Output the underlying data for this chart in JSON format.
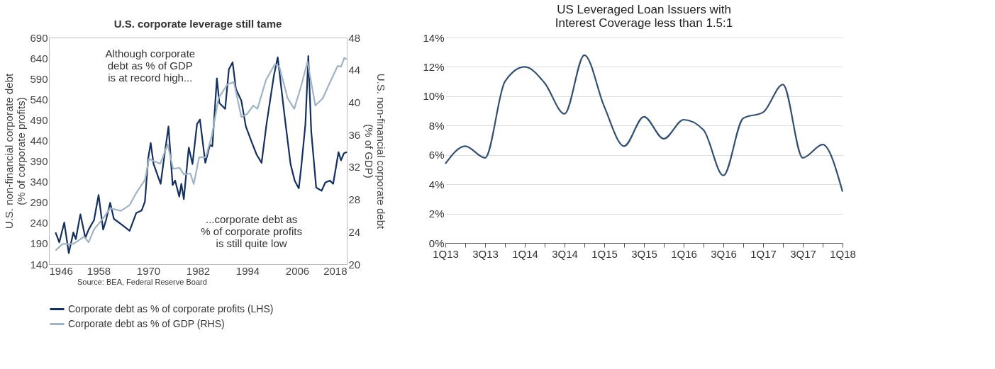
{
  "chart_data": [
    {
      "type": "line",
      "title": "U.S. corporate leverage still tame",
      "ylabel": "U.S. non-financial corporate debt\n(% of corporate profits)",
      "y2label": "U.S. non-financial corporate debt\n(% of GDP)",
      "xlim": [
        1946,
        2018
      ],
      "xticks": [
        1946,
        1958,
        1970,
        1982,
        1994,
        2006,
        2018
      ],
      "ylim": [
        140,
        690
      ],
      "yticks": [
        140,
        190,
        240,
        290,
        340,
        390,
        440,
        490,
        540,
        590,
        640,
        690
      ],
      "y2lim": [
        20,
        48
      ],
      "y2ticks": [
        20,
        24,
        28,
        32,
        36,
        40,
        44,
        48
      ],
      "grid": false,
      "legend": "bottom",
      "series": [
        {
          "name": "Corporate debt as % of corporate profits (LHS)",
          "color": "#14305e",
          "axis": "y",
          "x": [
            1947.6,
            1948.5,
            1949.7,
            1950.8,
            1951.9,
            1952.5,
            1953.6,
            1954.8,
            1955.6,
            1956.9,
            1958.0,
            1959.1,
            1959.8,
            1960.8,
            1961.7,
            1963.7,
            1965.5,
            1967.1,
            1968.4,
            1969.2,
            1970.0,
            1970.6,
            1971.3,
            1973.0,
            1973.8,
            1974.9,
            1975.9,
            1976.5,
            1977.5,
            1978.0,
            1978.6,
            1979.8,
            1980.7,
            1981.8,
            1982.5,
            1983.8,
            1984.9,
            1985.5,
            1986.6,
            1987.2,
            1988.6,
            1989.5,
            1990.4,
            1991.2,
            1992.5,
            1993.6,
            1995.1,
            1996.2,
            1997.4,
            1998.6,
            2000.4,
            2001.3,
            2003.0,
            2004.4,
            2005.4,
            2006.4,
            2007.0,
            2008.0,
            2008.7,
            2009.4,
            2010.6,
            2011.9,
            2012.8,
            2013.9,
            2014.7,
            2016.0,
            2016.6,
            2017.3,
            2018.0
          ],
          "values": [
            217,
            193,
            241,
            167,
            217,
            201,
            261,
            204,
            224,
            247,
            308,
            224,
            247,
            289,
            250,
            235,
            221,
            264,
            270,
            292,
            397,
            434,
            383,
            335,
            395,
            474,
            332,
            343,
            304,
            335,
            298,
            423,
            383,
            480,
            491,
            386,
            429,
            426,
            591,
            531,
            517,
            613,
            630,
            565,
            537,
            474,
            434,
            406,
            386,
            480,
            599,
            642,
            497,
            383,
            343,
            324,
            377,
            480,
            645,
            463,
            326,
            318,
            338,
            343,
            335,
            412,
            392,
            409,
            412
          ]
        },
        {
          "name": "Corporate debt as % of GDP (RHS)",
          "color": "#9fb3c3",
          "axis": "y2",
          "x": [
            1947.6,
            1949.3,
            1951.9,
            1954.5,
            1955.6,
            1956.9,
            1958.7,
            1960.8,
            1963.4,
            1965.5,
            1967.1,
            1969.2,
            1970.2,
            1972.9,
            1974.7,
            1976.0,
            1977.6,
            1978.6,
            1980.2,
            1981.0,
            1982.3,
            1983.9,
            1985.4,
            1987.0,
            1989.1,
            1990.7,
            1992.5,
            1993.8,
            1995.4,
            1996.4,
            1998.5,
            2000.6,
            2001.7,
            2003.7,
            2005.3,
            2006.9,
            2008.5,
            2010.4,
            2012.2,
            2013.7,
            2015.8,
            2016.6,
            2017.4,
            2018.0
          ],
          "values": [
            21.7,
            22.5,
            22.5,
            23.4,
            22.7,
            24.3,
            25.4,
            26.9,
            26.6,
            27.3,
            28.8,
            30.4,
            33.0,
            32.4,
            34.8,
            31.8,
            31.9,
            31.1,
            31.2,
            29.9,
            33.2,
            33.2,
            35.9,
            40.5,
            42.2,
            42.5,
            38.2,
            38.5,
            39.6,
            39.2,
            42.8,
            44.7,
            44.4,
            40.5,
            39.2,
            41.9,
            45.0,
            39.6,
            40.5,
            42.2,
            44.5,
            44.4,
            45.5,
            45.3
          ]
        }
      ],
      "annotations": [
        "Although corporate\ndebt as % of GDP\nis at record high...",
        "...corporate debt as\n% of corporate profits\nis still quite low",
        "Source: BEA, Federal Reserve Board"
      ]
    },
    {
      "type": "line",
      "title": "US Leveraged Loan Issuers with\nInterest Coverage less than 1.5:1",
      "categories": [
        "1Q13",
        null,
        "3Q13",
        null,
        "1Q14",
        null,
        "3Q14",
        null,
        "1Q15",
        null,
        "3Q15",
        null,
        "1Q16",
        null,
        "3Q16",
        null,
        "1Q17",
        null,
        "3Q17",
        null,
        "1Q18"
      ],
      "ylim": [
        0,
        14
      ],
      "yticks": [
        {
          "value": 0,
          "label": "0%"
        },
        {
          "value": 2,
          "label": "2%"
        },
        {
          "value": 4,
          "label": "4%"
        },
        {
          "value": 6,
          "label": "6%"
        },
        {
          "value": 8,
          "label": "8%"
        },
        {
          "value": 10,
          "label": "10%"
        },
        {
          "value": 12,
          "label": "12%"
        },
        {
          "value": 14,
          "label": "14%"
        }
      ],
      "grid": "y",
      "legend": false,
      "series": [
        {
          "color": "#34506f",
          "values": [
            5.4,
            6.6,
            5.8,
            11.0,
            12.0,
            10.9,
            8.8,
            12.8,
            9.3,
            6.6,
            8.6,
            7.1,
            8.4,
            7.7,
            4.6,
            8.5,
            8.9,
            10.8,
            5.8,
            6.7,
            3.5
          ]
        }
      ]
    }
  ]
}
